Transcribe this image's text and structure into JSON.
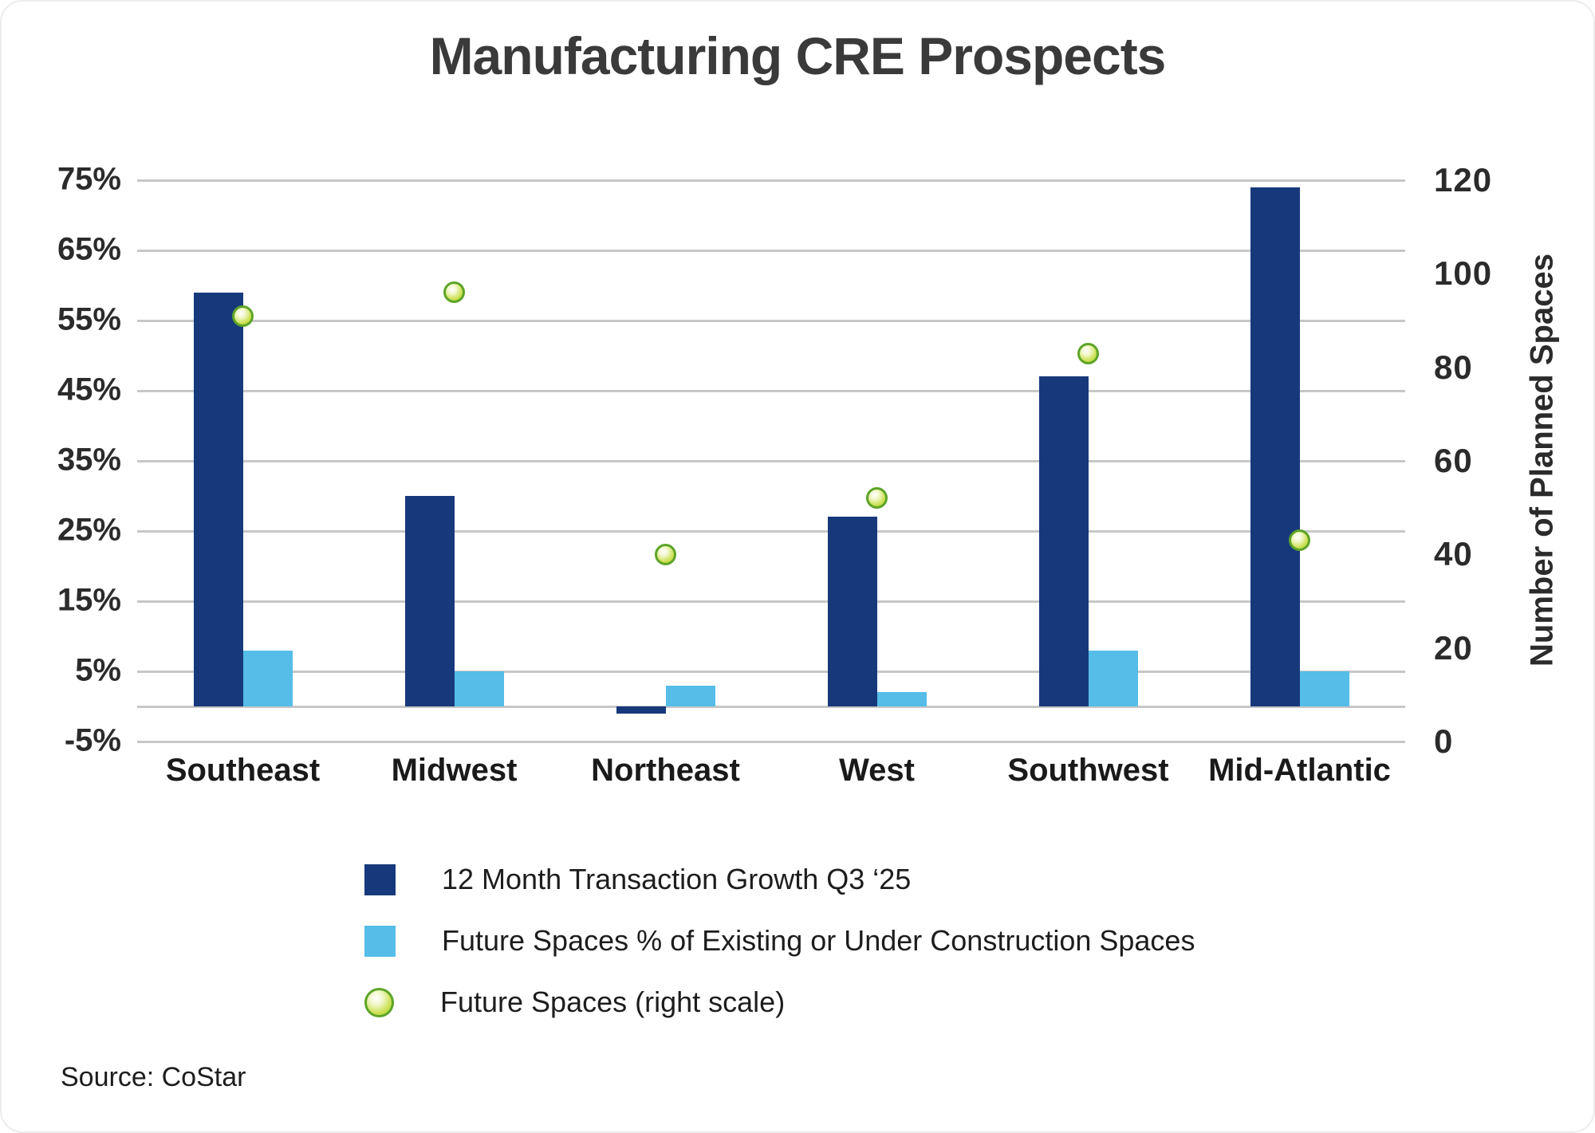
{
  "title": "Manufacturing CRE Prospects",
  "source": "Source: CoStar",
  "colors": {
    "navy": "#17397C",
    "light_blue": "#55BDE8",
    "green_border": "#5DA428",
    "green_light": "#F2F8CD",
    "green_mid": "#CDE155",
    "green_edge": "#A8CF2D",
    "gridline": "#C7C7C7",
    "title_text": "#3A3A3A",
    "text": "#1D1D1D"
  },
  "chart_data": {
    "type": "bar",
    "title": "Manufacturing CRE Prospects",
    "categories": [
      "Southeast",
      "Midwest",
      "Northeast",
      "West",
      "Southwest",
      "Mid-Atlantic"
    ],
    "series": [
      {
        "name": "12 Month Transaction Growth Q3 ‘25",
        "type": "bar",
        "axis": "left",
        "unit": "%",
        "values": [
          59,
          30,
          -1,
          27,
          47,
          74
        ]
      },
      {
        "name": "Future Spaces % of Existing or Under Construction Spaces",
        "type": "bar",
        "axis": "left",
        "unit": "%",
        "values": [
          8,
          5,
          3,
          2,
          8,
          5
        ]
      },
      {
        "name": "Future Spaces (right scale)",
        "type": "scatter",
        "axis": "right",
        "unit": "spaces",
        "values": [
          91,
          96,
          40,
          52,
          83,
          43
        ]
      }
    ],
    "left_axis": {
      "ticks": [
        "75%",
        "65%",
        "55%",
        "45%",
        "35%",
        "25%",
        "15%",
        "5%",
        "-5%"
      ],
      "tick_values": [
        75,
        65,
        55,
        45,
        35,
        25,
        15,
        5,
        -5
      ],
      "min": -5,
      "max": 75,
      "zero_line": true
    },
    "right_axis": {
      "label": "Number of Planned Spaces",
      "ticks": [
        "120",
        "100",
        "80",
        "60",
        "40",
        "20",
        "0"
      ],
      "tick_values": [
        120,
        100,
        80,
        60,
        40,
        20,
        0
      ],
      "min": 0,
      "max": 120
    },
    "grid": true,
    "legend_position": "bottom"
  },
  "legend": {
    "items": [
      {
        "label": "12 Month Transaction Growth Q3 ‘25",
        "marker": "square",
        "color": "#17397C"
      },
      {
        "label": "Future Spaces % of Existing or Under Construction Spaces",
        "marker": "square",
        "color": "#55BDE8"
      },
      {
        "label": "Future Spaces (right scale)",
        "marker": "circle",
        "color": "#A8CF2D"
      }
    ]
  }
}
